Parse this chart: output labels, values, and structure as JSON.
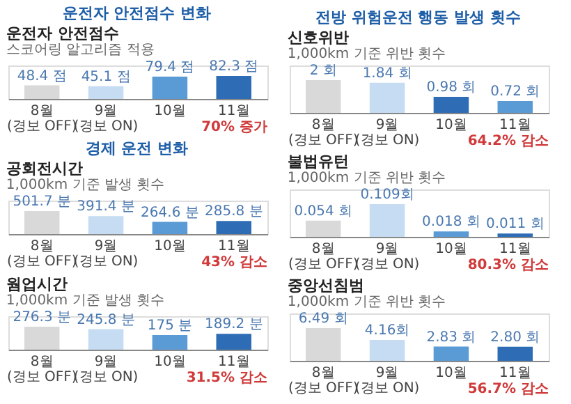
{
  "chart_data": [
    {
      "type": "bar",
      "title": "운전자 안전점수 변화",
      "ylabel": "운전자 안전점수",
      "subtitle": "스코어링 알고리즘 적용",
      "categories": [
        "8월\n(경보 OFF)",
        "9월\n(경보 ON)",
        "10월",
        "11월"
      ],
      "values": [
        48.4,
        45.1,
        79.4,
        82.3
      ],
      "value_labels": [
        "48.4 점",
        "45.1 점",
        "79.4 점",
        "82.3 점"
      ],
      "colors": [
        "#d9d9d9",
        "#c5dcf2",
        "#5b9bd5",
        "#2e6db5"
      ],
      "annotations": [
        "70% 증가"
      ]
    },
    {
      "type": "bar",
      "title": "경제 운전 변화",
      "ylabel": "공회전시간",
      "subtitle": "1,000km 기준 발생 횟수",
      "categories": [
        "8월\n(경보 OFF)",
        "9월\n(경보 ON)",
        "10월",
        "11월"
      ],
      "values": [
        501.7,
        391.4,
        264.6,
        285.8
      ],
      "value_labels": [
        "501.7 분",
        "391.4 분",
        "264.6 분",
        "285.8 분"
      ],
      "colors": [
        "#d9d9d9",
        "#c5dcf2",
        "#5b9bd5",
        "#2e6db5"
      ],
      "annotations": [
        "43% 감소"
      ]
    },
    {
      "type": "bar",
      "ylabel": "웜업시간",
      "subtitle": "1,000km 기준 발생 횟수",
      "categories": [
        "8월\n(경보 OFF)",
        "9월\n(경보 ON)",
        "10월",
        "11월"
      ],
      "values": [
        276.3,
        245.8,
        175,
        189.2
      ],
      "value_labels": [
        "276.3 분",
        "245.8 분",
        "175 분",
        "189.2 분"
      ],
      "colors": [
        "#d9d9d9",
        "#c5dcf2",
        "#5b9bd5",
        "#2e6db5"
      ],
      "annotations": [
        "31.5% 감소"
      ]
    },
    {
      "type": "bar",
      "title": "전방 위험운전 행동 발생 횟수",
      "ylabel": "신호위반",
      "subtitle": "1,000km 기준 위반 횟수",
      "categories": [
        "8월\n(경보 OFF)",
        "9월\n(경보 ON)",
        "10월",
        "11월"
      ],
      "values": [
        2,
        1.84,
        0.98,
        0.72
      ],
      "value_labels": [
        "2 회",
        "1.84 회",
        "0.98 회",
        "0.72 회"
      ],
      "colors": [
        "#d9d9d9",
        "#c5dcf2",
        "#2e6db5",
        "#5b9bd5"
      ],
      "annotations": [
        "64.2% 감소"
      ]
    },
    {
      "type": "bar",
      "ylabel": "불법유턴",
      "subtitle": "1,000km 기준 위반 횟수",
      "categories": [
        "8월\n(경보 OFF)",
        "9월\n(경보 ON)",
        "10월",
        "11월"
      ],
      "values": [
        0.054,
        0.109,
        0.018,
        0.011
      ],
      "value_labels": [
        "0.054 회",
        "0.109회",
        "0.018 회",
        "0.011 회"
      ],
      "colors": [
        "#d9d9d9",
        "#c5dcf2",
        "#5b9bd5",
        "#2e6db5"
      ],
      "annotations": [
        "80.3% 감소"
      ]
    },
    {
      "type": "bar",
      "ylabel": "중앙선침범",
      "subtitle": "1,000km 기준 위반 횟수",
      "categories": [
        "8월\n(경보 OFF)",
        "9월\n(경보 ON)",
        "10월",
        "11월"
      ],
      "values": [
        6.49,
        4.16,
        2.83,
        2.8
      ],
      "value_labels": [
        "6.49 회",
        "4.16회",
        "2.83 회",
        "2.80 회"
      ],
      "colors": [
        "#d9d9d9",
        "#c5dcf2",
        "#5b9bd5",
        "#2e6db5"
      ],
      "annotations": [
        "56.7% 감소"
      ]
    }
  ]
}
